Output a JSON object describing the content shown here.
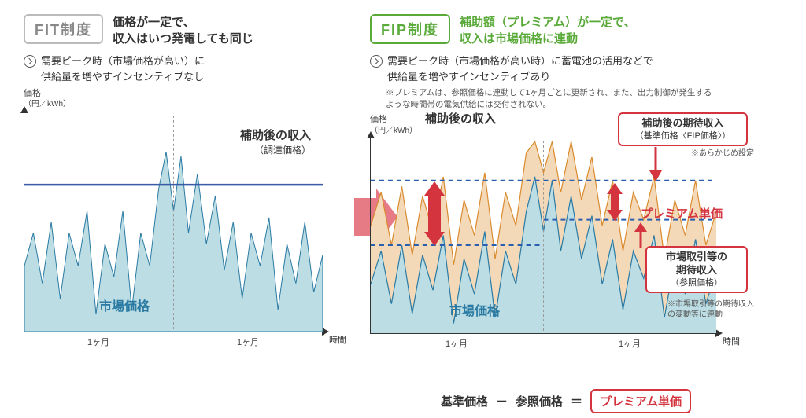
{
  "left": {
    "badge": "FIT制度",
    "headline": "価格が一定で、\n収入はいつ発電しても同じ",
    "sub": "需要ピーク時（市場価格が高い）に\n供給量を増やすインセンティブなし",
    "chart": {
      "y_label": "価格",
      "y_unit": "（円／kWh）",
      "x_label": "時間",
      "x_ticks": [
        "1ヶ月",
        "1ヶ月"
      ],
      "line_label_title": "補助後の収入",
      "line_label_sub": "（調達価格）",
      "market_label": "市場価格",
      "bg": "#ffffff",
      "market_fill": "#bcdde3",
      "market_stroke": "#2a7aa3",
      "flat_line_color": "#3a5ca8",
      "flat_line_y": 0.33,
      "divider_color": "#999999",
      "market_points": [
        [
          0,
          0.7
        ],
        [
          0.03,
          0.55
        ],
        [
          0.06,
          0.78
        ],
        [
          0.09,
          0.5
        ],
        [
          0.12,
          0.85
        ],
        [
          0.15,
          0.55
        ],
        [
          0.18,
          0.7
        ],
        [
          0.21,
          0.45
        ],
        [
          0.24,
          0.92
        ],
        [
          0.27,
          0.6
        ],
        [
          0.3,
          0.75
        ],
        [
          0.33,
          0.45
        ],
        [
          0.36,
          0.9
        ],
        [
          0.39,
          0.55
        ],
        [
          0.42,
          0.7
        ],
        [
          0.45,
          0.35
        ],
        [
          0.475,
          0.18
        ],
        [
          0.5,
          0.45
        ],
        [
          0.525,
          0.2
        ],
        [
          0.55,
          0.55
        ],
        [
          0.58,
          0.28
        ],
        [
          0.61,
          0.6
        ],
        [
          0.64,
          0.38
        ],
        [
          0.67,
          0.72
        ],
        [
          0.7,
          0.5
        ],
        [
          0.73,
          0.85
        ],
        [
          0.76,
          0.55
        ],
        [
          0.79,
          0.7
        ],
        [
          0.82,
          0.48
        ],
        [
          0.85,
          0.9
        ],
        [
          0.88,
          0.6
        ],
        [
          0.91,
          0.78
        ],
        [
          0.94,
          0.5
        ],
        [
          0.97,
          0.82
        ],
        [
          1.0,
          0.65
        ]
      ]
    }
  },
  "right": {
    "badge": "FIP制度",
    "headline": "補助額（プレミアム）が一定で、\n収入は市場価格に連動",
    "sub": "需要ピーク時（市場価格が高い時）に蓄電池の活用などで\n供給量を増やすインセンティブあり",
    "note": "※プレミアムは、参照価格に連動して1ヶ月ごとに更新され、また、出力制御が発生する\nような時間帯の電気供給には交付されない。",
    "chart": {
      "y_label": "価格",
      "y_unit": "（円／kWh）",
      "x_label": "時間",
      "x_ticks": [
        "1ヶ月",
        "1ヶ月"
      ],
      "top_revenue_label": "補助後の収入",
      "market_label": "市場価格",
      "premium_label": "プレミアム単価",
      "callout1_t1": "補助後の期待収入",
      "callout1_t2": "（基準価格〈FIP価格〉）",
      "callout1_note": "※あらかじめ設定",
      "callout2_t1": "市場取引等の",
      "callout2_t1b": "期待収入",
      "callout2_t2": "（参照価格）",
      "callout2_note": "※市場取引等の期待収入\nの変動等に連動",
      "market_fill": "#bcdde3",
      "market_stroke": "#2a7aa3",
      "premium_fill": "#f4d9b8",
      "premium_stroke": "#d98b2e",
      "dash_color": "#2a5fb0",
      "red": "#d4343e",
      "divider_color": "#999999",
      "dash_top_y": 0.22,
      "dash_ref_left_y": 0.55,
      "dash_ref_right_y": 0.42,
      "premium_offset": 0.3,
      "market_points": [
        [
          0,
          0.75
        ],
        [
          0.03,
          0.58
        ],
        [
          0.06,
          0.85
        ],
        [
          0.09,
          0.55
        ],
        [
          0.12,
          0.9
        ],
        [
          0.15,
          0.6
        ],
        [
          0.18,
          0.78
        ],
        [
          0.21,
          0.5
        ],
        [
          0.24,
          0.95
        ],
        [
          0.27,
          0.62
        ],
        [
          0.3,
          0.8
        ],
        [
          0.33,
          0.48
        ],
        [
          0.36,
          0.92
        ],
        [
          0.39,
          0.58
        ],
        [
          0.42,
          0.75
        ],
        [
          0.45,
          0.38
        ],
        [
          0.475,
          0.2
        ],
        [
          0.5,
          0.48
        ],
        [
          0.525,
          0.22
        ],
        [
          0.55,
          0.58
        ],
        [
          0.58,
          0.3
        ],
        [
          0.61,
          0.62
        ],
        [
          0.64,
          0.4
        ],
        [
          0.67,
          0.75
        ],
        [
          0.7,
          0.52
        ],
        [
          0.73,
          0.88
        ],
        [
          0.76,
          0.58
        ],
        [
          0.79,
          0.72
        ],
        [
          0.82,
          0.5
        ],
        [
          0.85,
          0.92
        ],
        [
          0.88,
          0.62
        ],
        [
          0.91,
          0.8
        ],
        [
          0.94,
          0.52
        ],
        [
          0.97,
          0.85
        ],
        [
          1.0,
          0.68
        ]
      ]
    }
  },
  "arrow_color": "#e77b85",
  "formula": {
    "a": "基準価格",
    "minus": "－",
    "b": "参照価格",
    "eq": "＝",
    "result": "プレミアム単価"
  }
}
